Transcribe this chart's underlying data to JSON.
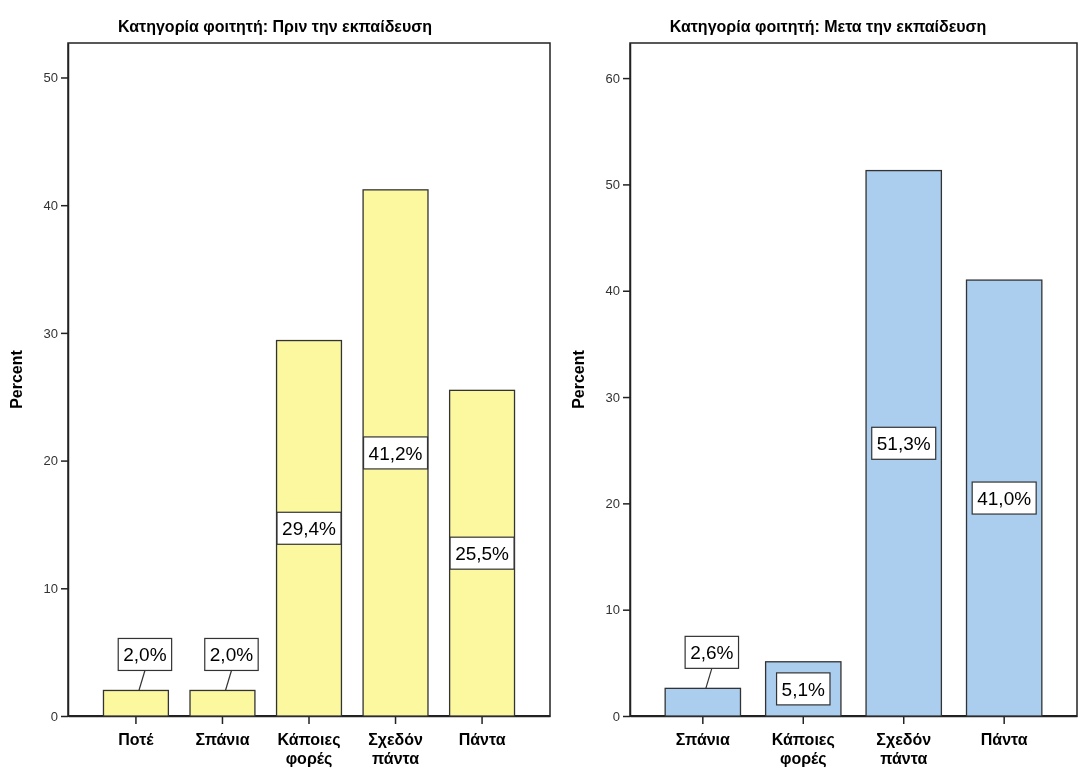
{
  "chart_data": [
    {
      "type": "bar",
      "title": "Κατηγορία φοιτητή: Πριν την εκπαίδευση",
      "ylabel": "Percent",
      "categories": [
        "Ποτέ",
        "Σπάνια",
        "Κάποιες φορές",
        "Σχεδόν πάντα",
        "Πάντα"
      ],
      "values": [
        2.0,
        2.0,
        29.4,
        41.2,
        25.5
      ],
      "value_labels": [
        "2,0%",
        "2,0%",
        "29,4%",
        "41,2%",
        "25,5%"
      ],
      "color": "#fbf8a0",
      "ylim": [
        0,
        52.7
      ],
      "yticks": [
        0,
        10,
        20,
        30,
        40,
        50
      ]
    },
    {
      "type": "bar",
      "title": "Κατηγορία φοιτητή: Μετα την εκπαίδευση",
      "ylabel": "Percent",
      "categories": [
        "Σπάνια",
        "Κάποιες φορές",
        "Σχεδόν πάντα",
        "Πάντα"
      ],
      "values": [
        2.6,
        5.1,
        51.3,
        41.0
      ],
      "value_labels": [
        "2,6%",
        "5,1%",
        "51,3%",
        "41,0%"
      ],
      "color": "#abcdee",
      "ylim": [
        0,
        63.3
      ],
      "yticks": [
        0,
        10,
        20,
        30,
        40,
        50,
        60
      ]
    }
  ]
}
